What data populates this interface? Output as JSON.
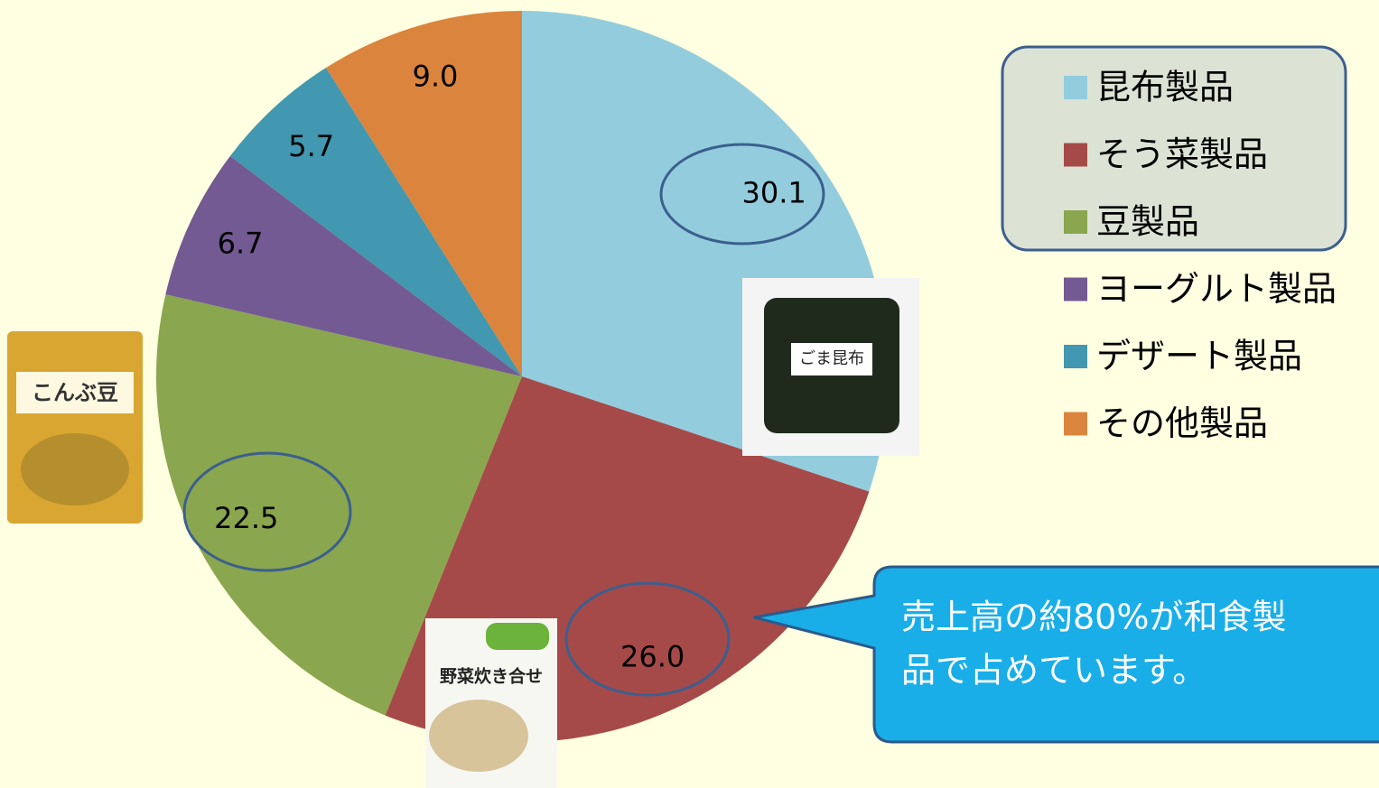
{
  "chart_data": {
    "type": "pie",
    "categories": [
      "昆布製品",
      "そう菜製品",
      "豆製品",
      "ヨーグルト製品",
      "デザート製品",
      "その他製品"
    ],
    "values": [
      30.1,
      26.0,
      22.5,
      6.7,
      5.7,
      9.0
    ],
    "value_labels": [
      "30.1",
      "26.0",
      "22.5",
      "6.7",
      "5.7",
      "9.0"
    ],
    "colors": [
      "#93cddd",
      "#a64a49",
      "#8aa64e",
      "#735a92",
      "#4198b0",
      "#db843e"
    ],
    "callout": [
      "売上高の約80%が和食製",
      "品で占めています。"
    ]
  },
  "products": [
    {
      "label": "ごま昆布"
    },
    {
      "label": "こんぶ豆"
    },
    {
      "label": "野菜炊き合せ"
    }
  ]
}
